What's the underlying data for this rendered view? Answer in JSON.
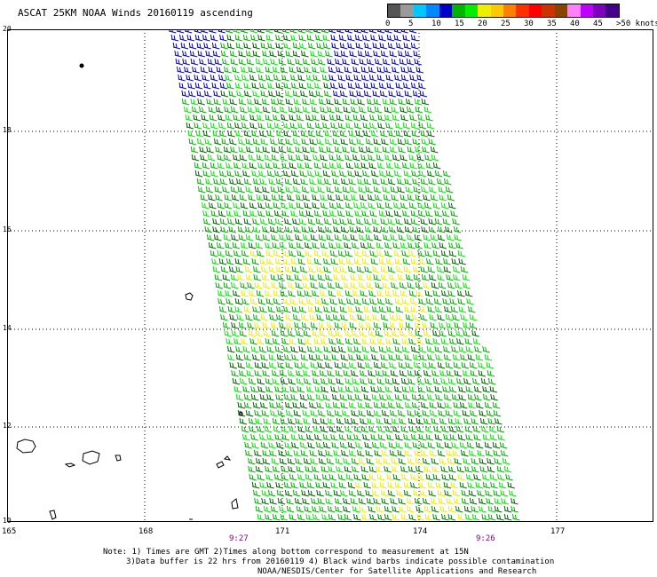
{
  "title": "ASCAT 25KM NOAA Winds 20160119 ascending",
  "scale": {
    "colors": [
      "#555555",
      "#9a9a9a",
      "#00c8ff",
      "#0088ff",
      "#0000c8",
      "#00b400",
      "#00ee00",
      "#eeee00",
      "#ffc800",
      "#ff8000",
      "#ff3000",
      "#ff0000",
      "#cc3300",
      "#884400",
      "#ff80ff",
      "#c000ff",
      "#8000c0",
      "#440088"
    ],
    "labels": [
      "0",
      "5",
      "10",
      "15",
      "20",
      "25",
      "30",
      "35",
      "40",
      "45",
      ">50 knots"
    ]
  },
  "lat_labels": [
    "20",
    "18",
    "16",
    "14",
    "12",
    "10"
  ],
  "lon_labels": [
    "165",
    "168",
    "171",
    "174",
    "177"
  ],
  "times": [
    "9:27",
    "9:26"
  ],
  "notes": [
    "Note: 1) Times are GMT 2)Times along bottom correspond to measurement at 15N",
    "3)Data buffer is 22 hrs from 20160119 4) Black wind barbs indicate possible contamination",
    "NOAA/NESDIS/Center for Satellite Applications and Research"
  ]
}
